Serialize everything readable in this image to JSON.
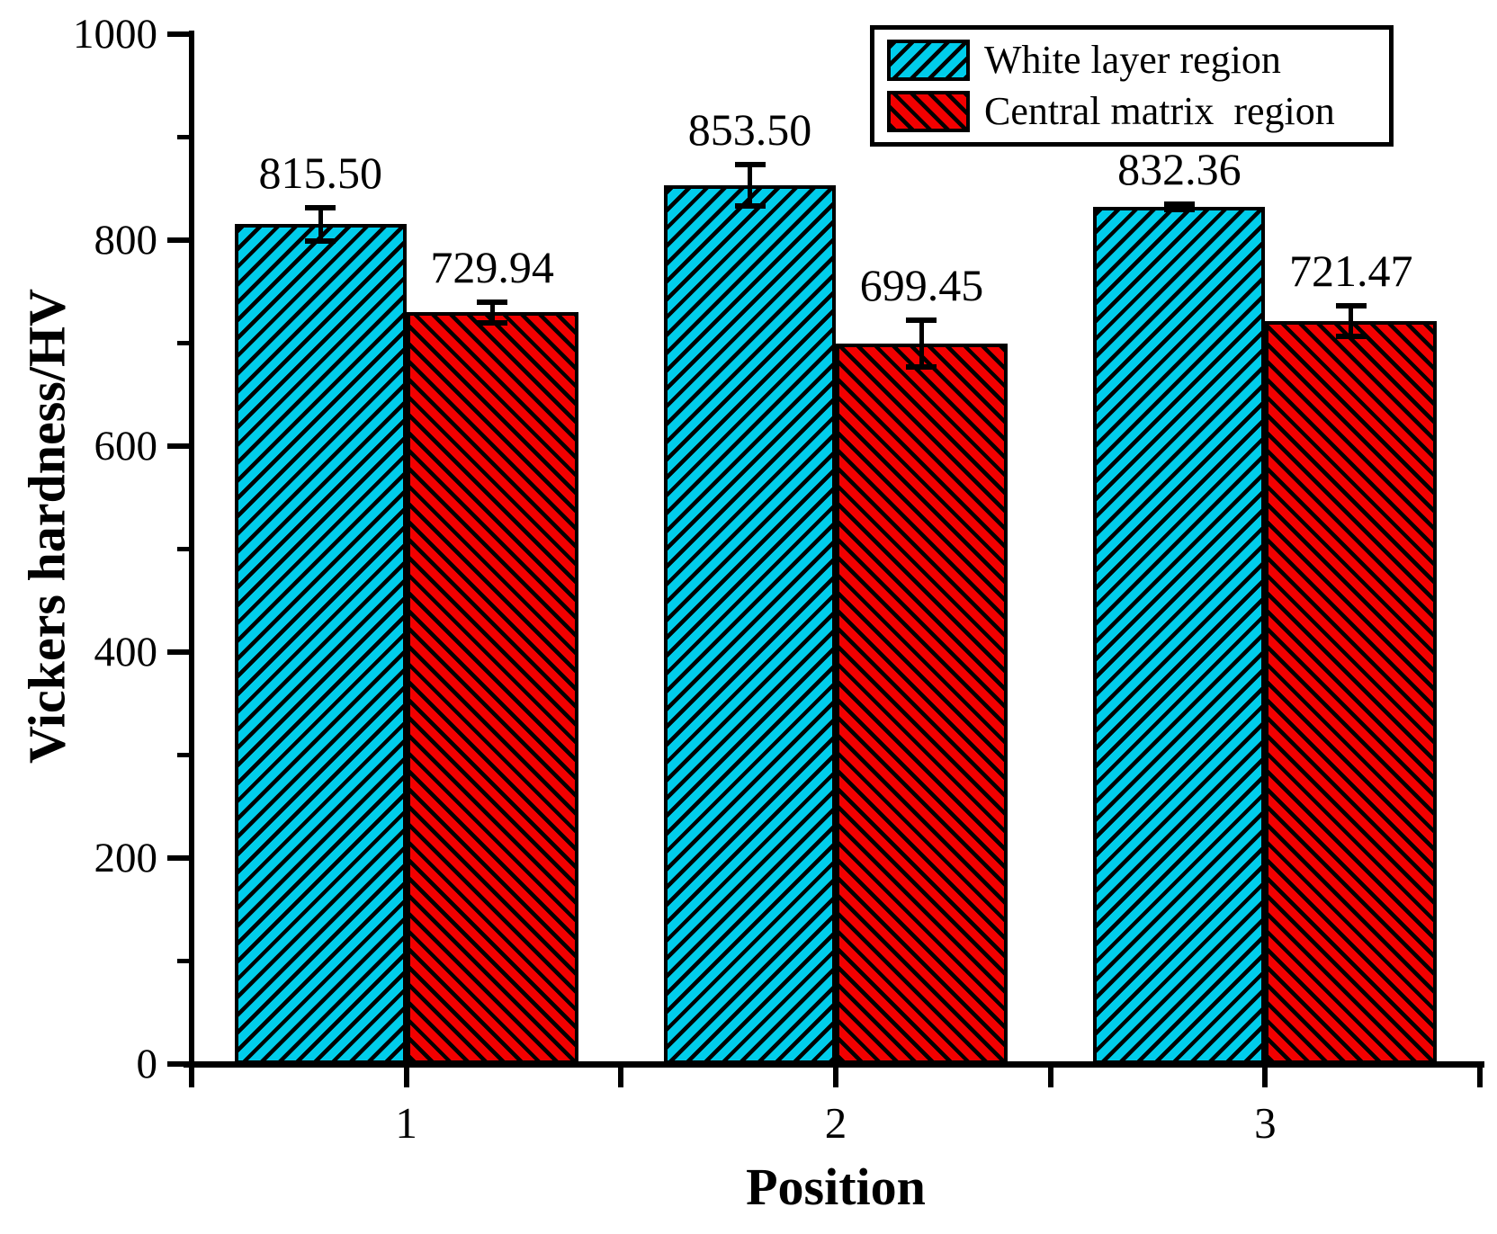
{
  "chart_data": {
    "type": "bar",
    "title": "",
    "xlabel": "Position",
    "ylabel": "Vickers hardness/HV",
    "categories": [
      "1",
      "2",
      "3"
    ],
    "series": [
      {
        "name": "White layer region",
        "color": "#00cdeb",
        "hatch": "/",
        "values": [
          815.5,
          853.5,
          832.36
        ],
        "value_labels": [
          "815.50",
          "853.50",
          "832.36"
        ],
        "error_bars": [
          16,
          20,
          2.5
        ]
      },
      {
        "name": "Central matrix  region",
        "color": "#f20000",
        "hatch": "\\",
        "values": [
          729.94,
          699.45,
          721.47
        ],
        "value_labels": [
          "729.94",
          "699.45",
          "721.47"
        ],
        "error_bars": [
          10,
          23,
          15
        ]
      }
    ],
    "ylim": [
      0,
      1000
    ],
    "yticks_major": [
      0,
      200,
      400,
      600,
      800,
      1000
    ],
    "ytick_labels": [
      "0",
      "200",
      "400",
      "600",
      "800",
      "1000"
    ],
    "yticks_minor": [
      100,
      300,
      500,
      700,
      900
    ],
    "bar_width_fraction": 0.4,
    "legend_position": "top-right",
    "grid": false,
    "axis_color": "#000000",
    "bar_border_color": "#000000",
    "error_bar_color": "#000000",
    "background_color": "#ffffff"
  }
}
